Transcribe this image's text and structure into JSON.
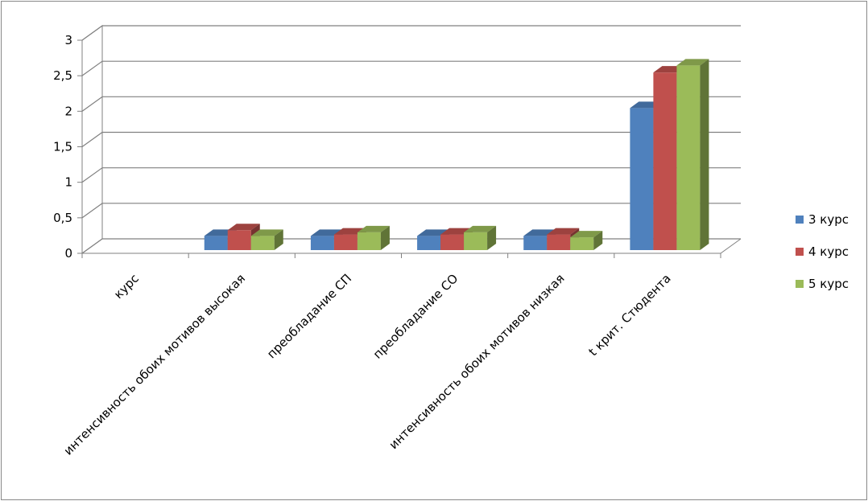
{
  "chart_data": {
    "type": "bar",
    "categories": [
      "курс",
      "интенсивность обоих мотивов высокая",
      "преобладание СП",
      "преобладание СО",
      "интенсивность обоих мотивов низкая",
      "t крит. Стюдента"
    ],
    "series": [
      {
        "name": "3 курс",
        "color": "#4F81BD",
        "values": [
          0,
          0.2,
          0.2,
          0.2,
          0.2,
          2.0
        ]
      },
      {
        "name": "4 курс",
        "color": "#C0504D",
        "values": [
          0,
          0.28,
          0.22,
          0.22,
          0.22,
          2.5
        ]
      },
      {
        "name": "5 курс",
        "color": "#9BBB59",
        "values": [
          0,
          0.2,
          0.25,
          0.25,
          0.18,
          2.6
        ]
      }
    ],
    "yticks": [
      "0",
      "0,5",
      "1",
      "1,5",
      "2",
      "2,5",
      "3"
    ],
    "ylim": [
      0,
      3
    ],
    "grid": true,
    "legend": "right",
    "style": "3d-clustered-column"
  }
}
